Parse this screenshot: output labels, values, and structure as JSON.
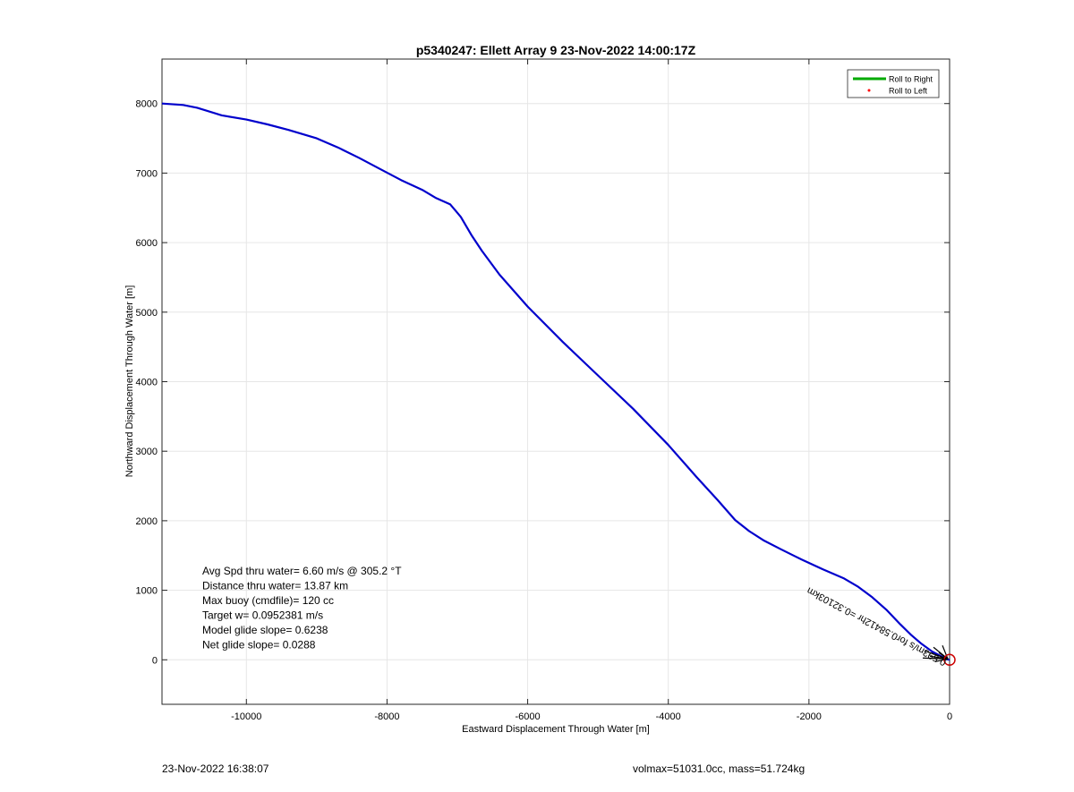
{
  "chart_data": {
    "type": "line",
    "title": "p5340247: Ellett Array 9 23-Nov-2022 14:00:17Z",
    "xlabel": "Eastward Displacement Through Water [m]",
    "ylabel": "Northward Displacement Through Water [m]",
    "xlim": [
      -11200,
      0
    ],
    "ylim": [
      -640,
      8640
    ],
    "xticks": [
      -10000,
      -8000,
      -6000,
      -4000,
      -2000,
      0
    ],
    "yticks": [
      0,
      1000,
      2000,
      3000,
      4000,
      5000,
      6000,
      7000,
      8000
    ],
    "xtick_labels": [
      "-10000",
      "-8000",
      "-6000",
      "-4000",
      "-2000",
      "0"
    ],
    "ytick_labels": [
      "0",
      "1000",
      "2000",
      "3000",
      "4000",
      "5000",
      "6000",
      "7000",
      "8000"
    ],
    "grid": true,
    "legend_position": "top-right",
    "series": [
      {
        "name": "Roll to Right",
        "color": "#0000cc",
        "x": [
          -11200,
          -10900,
          -10700,
          -10350,
          -10000,
          -9700,
          -9400,
          -9000,
          -8700,
          -8400,
          -8100,
          -7800,
          -7500,
          -7300,
          -7100,
          -6950,
          -6800,
          -6650,
          -6400,
          -6000,
          -5500,
          -5000,
          -4500,
          -4000,
          -3600,
          -3300,
          -3050,
          -2850,
          -2650,
          -2400,
          -2100,
          -1800,
          -1500,
          -1300,
          -1100,
          -900,
          -700,
          -550,
          -400,
          -250,
          -120,
          -40,
          0
        ],
        "y": [
          8000,
          7980,
          7940,
          7830,
          7770,
          7700,
          7620,
          7500,
          7370,
          7220,
          7060,
          6900,
          6760,
          6640,
          6550,
          6370,
          6110,
          5880,
          5540,
          5080,
          4570,
          4090,
          3610,
          3090,
          2630,
          2300,
          2010,
          1850,
          1720,
          1590,
          1440,
          1300,
          1170,
          1050,
          900,
          720,
          510,
          360,
          230,
          120,
          50,
          10,
          0
        ]
      }
    ],
    "legend": [
      {
        "label": "Roll to Right",
        "color": "#00aa00",
        "marker": "line"
      },
      {
        "label": "Roll to Left",
        "color": "#ff0000",
        "marker": "dot"
      }
    ],
    "annotations": [
      "Avg Spd thru water=  6.60 m/s @ 305.2 °T",
      "Distance thru water= 13.87 km",
      "Max buoy (cmdfile)= 120 cc",
      "Target w= 0.0952381 m/s",
      "Model glide slope= 0.6238",
      "Net glide slope= 0.0288"
    ],
    "rotated_annotation": "0.593m/s for0.58412hr =0.32103km",
    "end_marker_color": "#cc0000"
  },
  "footer": {
    "timestamp": "23-Nov-2022 16:38:07",
    "stats": "volmax=51031.0cc, mass=51.724kg"
  }
}
